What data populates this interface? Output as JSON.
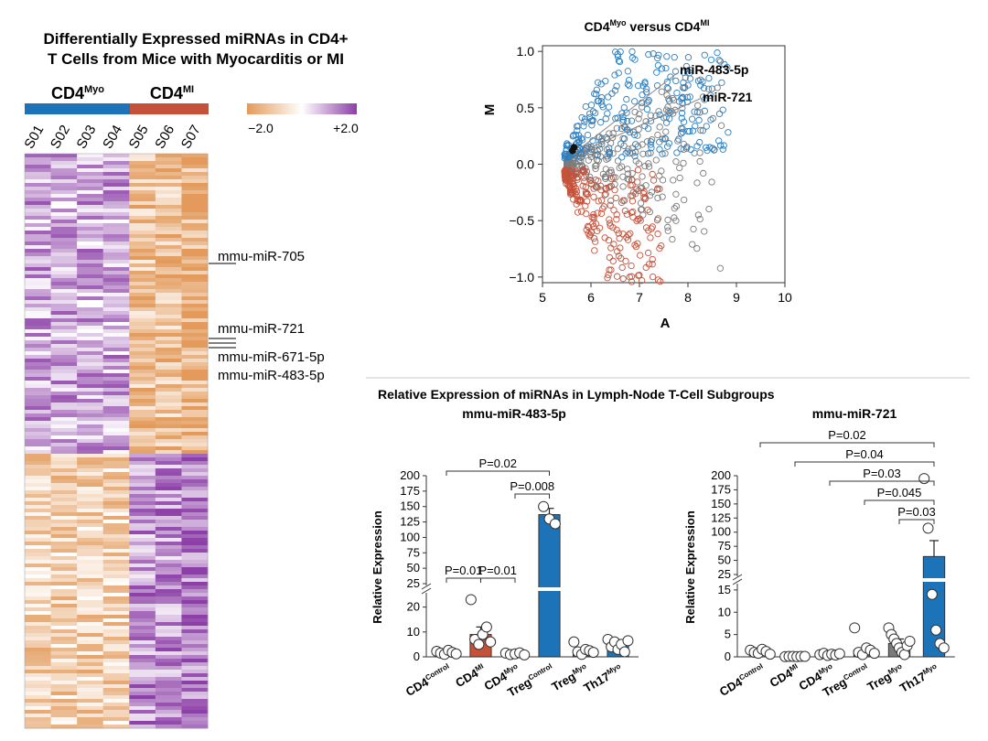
{
  "heatmap": {
    "title_line1": "Differentially Expressed miRNAs in CD4+",
    "title_line2": "T Cells from Mice with Myocarditis or MI",
    "group1_base": "CD4",
    "group1_sup": "Myo",
    "group2_base": "CD4",
    "group2_sup": "MI",
    "group1_color": "#1d73b8",
    "group2_color": "#c4523a",
    "samples": [
      "S01",
      "S02",
      "S03",
      "S04",
      "S05",
      "S06",
      "S07"
    ],
    "scale_min": "−2.0",
    "scale_max": "+2.0",
    "low_color": "#e39a5a",
    "high_color": "#8c3fa7",
    "labels": [
      "mmu-miR-705",
      "mmu-miR-721",
      "mmu-miR-671-5p",
      "mmu-miR-483-5p"
    ]
  },
  "scatter": {
    "title_base": "CD4",
    "title_sup1": "Myo",
    "title_mid": " versus CD4",
    "title_sup2": "MI",
    "xlabel": "A",
    "ylabel": "M",
    "xticks": [
      "5",
      "6",
      "7",
      "8",
      "9",
      "10"
    ],
    "yticks": [
      "1.0",
      "0.5",
      "0.0",
      "−0.5",
      "−1.0"
    ],
    "annot1": "miR-483-5p",
    "annot2": "miR-721",
    "up_color": "#2b7ec1",
    "down_color": "#c4523a",
    "ns_color": "#7a7a7a"
  },
  "bar_section": {
    "title": "Relative Expression of miRNAs in Lymph-Node T-Cell Subgroups",
    "ylabel": "Relative Expression"
  },
  "chart_data": [
    {
      "type": "heatmap",
      "title": "Differentially Expressed miRNAs in CD4+ T Cells from Mice with Myocarditis or MI",
      "columns": [
        "S01",
        "S02",
        "S03",
        "S04",
        "S05",
        "S06",
        "S07"
      ],
      "groups": [
        {
          "name": "CD4Myo",
          "columns": [
            "S01",
            "S02",
            "S03",
            "S04"
          ]
        },
        {
          "name": "CD4MI",
          "columns": [
            "S05",
            "S06",
            "S07"
          ]
        }
      ],
      "scale": [
        -2.0,
        2.0
      ],
      "row_labels": [
        "mmu-miR-705",
        "mmu-miR-721",
        "mmu-miR-671-5p",
        "mmu-miR-483-5p"
      ]
    },
    {
      "type": "scatter",
      "title": "CD4Myo versus CD4MI",
      "xlabel": "A",
      "ylabel": "M",
      "xlim": [
        5,
        10
      ],
      "ylim": [
        -1.05,
        1.05
      ],
      "highlighted": [
        {
          "label": "miR-483-5p",
          "x": 5.65,
          "y": 0.15
        },
        {
          "label": "miR-721",
          "x": 5.62,
          "y": 0.12
        }
      ]
    },
    {
      "type": "bar",
      "title": "mmu-miR-483-5p",
      "ylabel": "Relative Expression",
      "categories": [
        "CD4Control",
        "CD4MI",
        "CD4Myo",
        "TregControl",
        "TregMyo",
        "Th17Myo"
      ],
      "values": [
        1.8,
        9,
        1.2,
        137,
        2.8,
        5
      ],
      "errors": [
        0.4,
        3,
        0.3,
        10,
        0.8,
        1.5
      ],
      "bar_colors": [
        "#ffffff",
        "#c4523a",
        "#ffffff",
        "#1d73b8",
        "#1d73b8",
        "#1d73b8"
      ],
      "points": [
        [
          2.2,
          1.5,
          1.0,
          2.6,
          1.8,
          1.2
        ],
        [
          23,
          7,
          5,
          9,
          12,
          6
        ],
        [
          1.5,
          0.9,
          1.2,
          1.6,
          0.8
        ],
        [
          150,
          130,
          122
        ],
        [
          6,
          2,
          1,
          3,
          2.5,
          1.8
        ],
        [
          7,
          4,
          6,
          3,
          5,
          2,
          6.5
        ]
      ],
      "yaxis_break": [
        25,
        25
      ],
      "yticks_low": [
        0,
        10,
        20
      ],
      "yticks_high": [
        25,
        50,
        75,
        100,
        125,
        150,
        175,
        200
      ],
      "comparisons": [
        {
          "label": "P=0.01",
          "from": 0,
          "to": 1
        },
        {
          "label": "P=0.01",
          "from": 1,
          "to": 2
        },
        {
          "label": "P=0.008",
          "from": 2,
          "to": 3
        },
        {
          "label": "P=0.02",
          "from": 0,
          "to": 3
        }
      ]
    },
    {
      "type": "bar",
      "title": "mmu-miR-721",
      "ylabel": "Relative Expression",
      "categories": [
        "CD4Control",
        "CD4MI",
        "CD4Myo",
        "TregControl",
        "TregMyo",
        "Th17Myo"
      ],
      "values": [
        1.2,
        0.1,
        0.5,
        1.5,
        3,
        57
      ],
      "errors": [
        0.3,
        0.05,
        0.1,
        0.5,
        1.0,
        28
      ],
      "bar_colors": [
        "#ffffff",
        "#c4523a",
        "#ffffff",
        "#1d73b8",
        "#7a7a7a",
        "#1d73b8"
      ],
      "points": [
        [
          1.5,
          1.0,
          0.8,
          1.7,
          1.2,
          0.6
        ],
        [
          0.05,
          0.1,
          0.1,
          0.05,
          0.1,
          0.1
        ],
        [
          0.5,
          0.8,
          0.3,
          0.6,
          0.4,
          0.7
        ],
        [
          6.5,
          1.0,
          0.5,
          2.0,
          1.5,
          0.8
        ],
        [
          6.5,
          5,
          4,
          3,
          2,
          1,
          0.5,
          2.5,
          3.5
        ],
        [
          195,
          107,
          14,
          6,
          3,
          2
        ]
      ],
      "yaxis_break": [
        15,
        25
      ],
      "yticks_low": [
        0,
        5,
        10,
        15
      ],
      "yticks_high": [
        25,
        50,
        75,
        100,
        125,
        150,
        175,
        200
      ],
      "comparisons": [
        {
          "label": "P=0.03",
          "from": 4,
          "to": 5
        },
        {
          "label": "P=0.045",
          "from": 3,
          "to": 5
        },
        {
          "label": "P=0.03",
          "from": 2,
          "to": 5
        },
        {
          "label": "P=0.04",
          "from": 1,
          "to": 5
        },
        {
          "label": "P=0.02",
          "from": 0,
          "to": 5
        }
      ]
    }
  ]
}
